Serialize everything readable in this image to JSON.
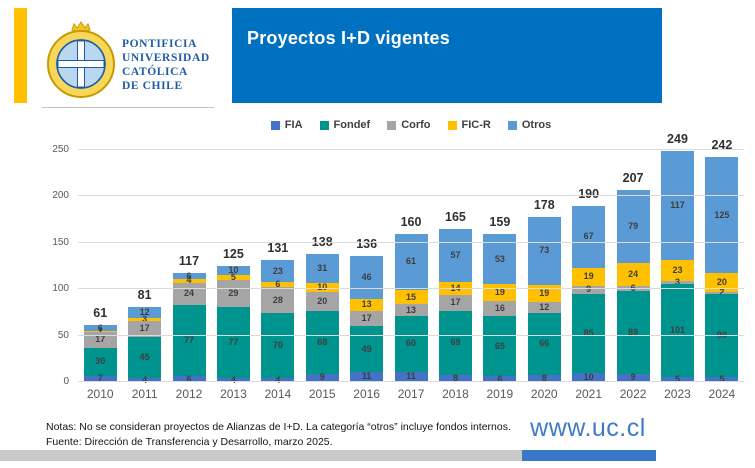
{
  "header": {
    "university_lines": [
      "PONTIFICIA",
      "UNIVERSIDAD",
      "CATÓLICA",
      "DE CHILE"
    ],
    "title": "Proyectos I+D vigentes"
  },
  "chart_data": {
    "type": "bar",
    "stacked": true,
    "title": "Proyectos I+D vigentes",
    "categories": [
      "2010",
      "2011",
      "2012",
      "2013",
      "2014",
      "2015",
      "2016",
      "2017",
      "2018",
      "2019",
      "2020",
      "2021",
      "2022",
      "2023",
      "2024"
    ],
    "series": [
      {
        "name": "FIA",
        "color": "#4472C4",
        "values": [
          7,
          4,
          6,
          4,
          4,
          9,
          11,
          11,
          8,
          6,
          8,
          10,
          9,
          5,
          5
        ]
      },
      {
        "name": "Fondef",
        "color": "#00948F",
        "values": [
          30,
          45,
          77,
          77,
          70,
          68,
          49,
          60,
          69,
          65,
          66,
          85,
          89,
          101,
          90
        ]
      },
      {
        "name": "Corfo",
        "color": "#A5A5A5",
        "values": [
          17,
          17,
          24,
          29,
          28,
          20,
          17,
          13,
          17,
          16,
          12,
          9,
          6,
          3,
          2
        ]
      },
      {
        "name": "FIC-R",
        "color": "#FFC000",
        "values": [
          1,
          3,
          4,
          5,
          6,
          10,
          13,
          15,
          14,
          19,
          19,
          19,
          24,
          23,
          20
        ]
      },
      {
        "name": "Otros",
        "color": "#5B9BD5",
        "values": [
          6,
          12,
          6,
          10,
          23,
          31,
          46,
          61,
          57,
          53,
          73,
          67,
          79,
          117,
          125
        ]
      }
    ],
    "totals": [
      61,
      81,
      117,
      125,
      131,
      138,
      136,
      160,
      165,
      159,
      178,
      190,
      207,
      249,
      242
    ],
    "y_ticks": [
      0,
      50,
      100,
      150,
      200,
      250
    ],
    "ylim": [
      0,
      250
    ],
    "grid": true,
    "legend_position": "top"
  },
  "footer": {
    "note_line1": "Notas: No se consideran proyectos de Alianzas de I+D. La categoría “otros” incluye fondos internos.",
    "note_line2": "Fuente: Dirección de Transferencia y Desarrollo, marzo 2025.",
    "website": "www.uc.cl"
  },
  "colors": {
    "banner_blue": "#0070C0",
    "accent_yellow": "#FFC000",
    "university_text_blue": "#1F5CA8",
    "website_blue": "#3E7BC7",
    "footer_gray": "#C9C9C9",
    "footer_blue": "#3A77C8"
  }
}
